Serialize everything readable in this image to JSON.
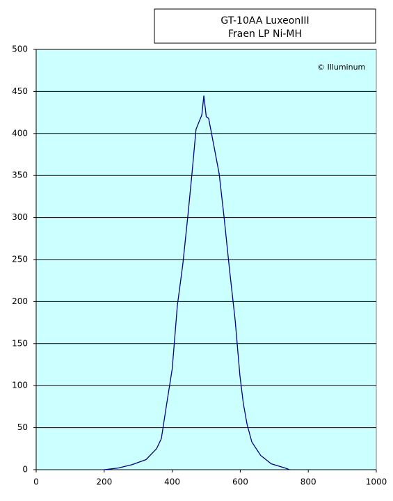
{
  "chart_data": {
    "type": "line",
    "title": [
      "GT-10AA LuxeonIII",
      "Fraen LP Ni-MH"
    ],
    "annotation": "© Illuminum",
    "x": [
      200,
      241,
      282,
      323,
      354,
      368,
      384,
      400,
      415,
      431,
      446,
      458,
      470,
      487,
      493,
      500,
      507,
      517,
      538,
      552,
      569,
      585,
      599,
      609,
      620,
      634,
      660,
      691,
      732,
      745
    ],
    "series": [
      {
        "name": "intensity",
        "color": "#000080",
        "values": [
          0,
          2,
          6,
          12,
          25,
          37,
          79,
          120,
          195,
          244,
          302,
          352,
          405,
          422,
          445,
          420,
          418,
          397,
          352,
          302,
          236,
          178,
          112,
          79,
          54,
          33,
          17,
          7,
          2,
          0
        ]
      }
    ],
    "xlim": [
      0,
      1000
    ],
    "xticks": [
      0,
      200,
      400,
      600,
      800,
      1000
    ],
    "ylim": [
      0,
      500
    ],
    "yticks": [
      0,
      50,
      100,
      150,
      200,
      250,
      300,
      350,
      400,
      450,
      500
    ],
    "grid": true,
    "plot_background": "#ccffff"
  }
}
